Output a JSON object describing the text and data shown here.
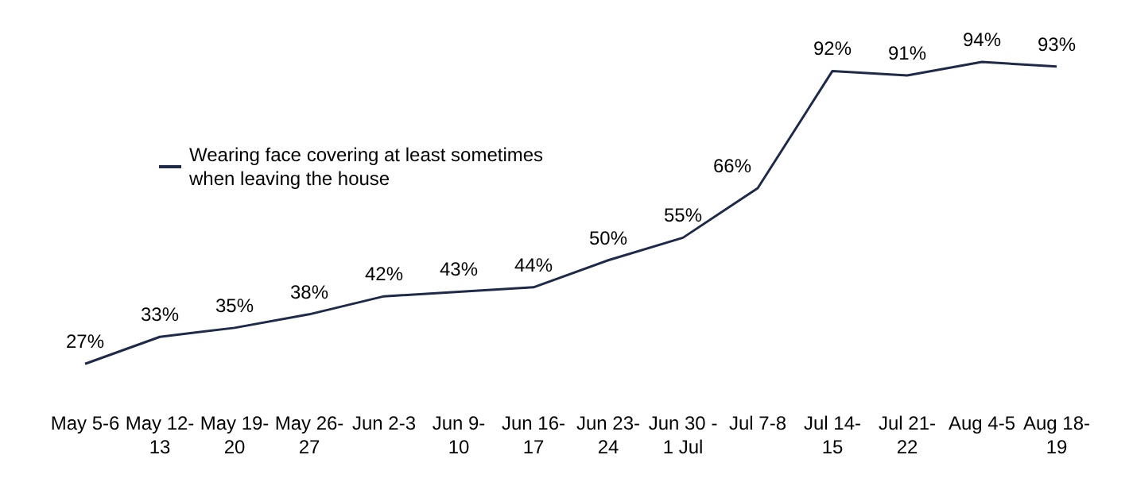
{
  "chart_data": {
    "type": "line",
    "categories": [
      "May 5-6",
      "May 12-13",
      "May 19-20",
      "May 26-27",
      "Jun 2-3",
      "Jun 9-10",
      "Jun 16-17",
      "Jun 23-24",
      "Jun 30 - 1 Jul",
      "Jul 7-8",
      "Jul 14-15",
      "Jul 21-22",
      "Aug 4-5",
      "Aug 18-19"
    ],
    "series": [
      {
        "name": "Wearing face covering at least sometimes when leaving the house",
        "color": "#1f2a48",
        "values": [
          27,
          33,
          35,
          38,
          42,
          43,
          44,
          50,
          55,
          66,
          92,
          91,
          94,
          93
        ],
        "value_labels": [
          "27%",
          "33%",
          "35%",
          "38%",
          "42%",
          "43%",
          "44%",
          "50%",
          "55%",
          "66%",
          "92%",
          "91%",
          "94%",
          "93%"
        ]
      }
    ],
    "legend": "top left",
    "marker": "none",
    "grid": false
  }
}
